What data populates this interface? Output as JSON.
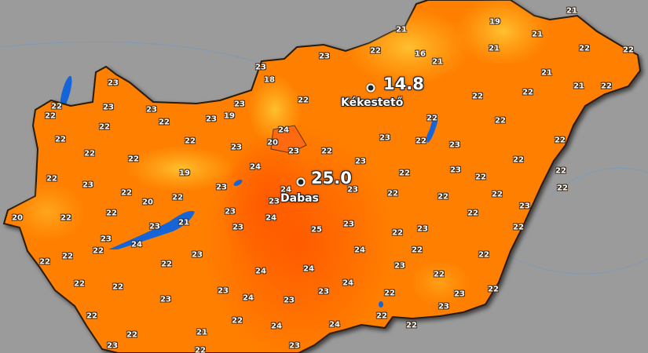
{
  "map": {
    "colors": {
      "background": "#9b9b9b",
      "land": "#ff7f00",
      "warm": "#ff6200",
      "cool": "#ffa020",
      "water": "#1565d8",
      "border": "#2a1a10"
    },
    "labels": [
      "21",
      "19",
      "21",
      "21",
      "22",
      "16",
      "21",
      "21",
      "22",
      "22",
      "23",
      "23",
      "18",
      "21",
      "21",
      "22",
      "22",
      "22",
      "22",
      "23",
      "22",
      "22",
      "24",
      "20",
      "22",
      "23",
      "22",
      "23",
      "23",
      "22",
      "22",
      "23",
      "22",
      "22",
      "24",
      "23",
      "22",
      "22",
      "22",
      "23",
      "22",
      "22",
      "23",
      "22",
      "23",
      "22",
      "23",
      "22",
      "22",
      "23",
      "19",
      "22",
      "22",
      "23",
      "22",
      "22",
      "19",
      "22",
      "23",
      "22",
      "23",
      "22",
      "20",
      "24",
      "23",
      "20",
      "22",
      "22",
      "23",
      "21",
      "23",
      "23",
      "24",
      "25",
      "23",
      "24",
      "22",
      "22",
      "22",
      "22",
      "23",
      "24",
      "24",
      "22",
      "22",
      "23",
      "24",
      "23",
      "23",
      "22",
      "22",
      "21",
      "22",
      "24",
      "23",
      "22",
      "23",
      "23",
      "22",
      "23",
      "22",
      "23",
      "22",
      "24",
      "22",
      "22",
      "23",
      "24",
      "22",
      "23",
      "22",
      "23",
      "22",
      "23",
      "22",
      "24",
      "22"
    ],
    "stations": [
      {
        "name": "Kékestető",
        "value": "14.8"
      },
      {
        "name": "Dabas",
        "value": "25.0"
      }
    ]
  }
}
